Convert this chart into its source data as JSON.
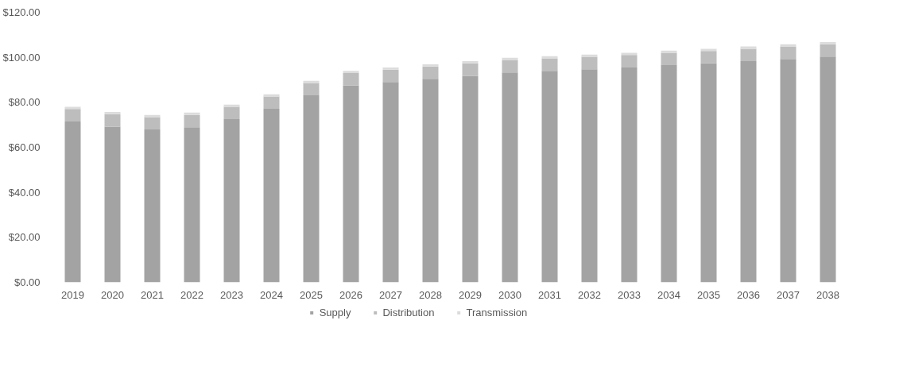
{
  "chart_data": {
    "type": "bar",
    "stacked": true,
    "categories": [
      "2019",
      "2020",
      "2021",
      "2022",
      "2023",
      "2024",
      "2025",
      "2026",
      "2027",
      "2028",
      "2029",
      "2030",
      "2031",
      "2032",
      "2033",
      "2034",
      "2035",
      "2036",
      "2037",
      "2038"
    ],
    "series": [
      {
        "name": "Supply",
        "color": "#a3a3a3",
        "values": [
          71.5,
          69.2,
          67.9,
          68.9,
          72.5,
          77.1,
          83.1,
          87.5,
          89,
          90.4,
          91.8,
          93.3,
          94,
          94.7,
          95.5,
          96.5,
          97.3,
          98.3,
          99.3,
          100.3
        ]
      },
      {
        "name": "Distribution",
        "color": "#bdbdbd",
        "values": [
          5.5,
          5.5,
          5.5,
          5.5,
          5.5,
          5.5,
          5.5,
          5.5,
          5.5,
          5.5,
          5.5,
          5.5,
          5.5,
          5.5,
          5.5,
          5.5,
          5.5,
          5.5,
          5.5,
          5.5
        ]
      },
      {
        "name": "Transmission",
        "color": "#dcdcdc",
        "values": [
          1,
          1,
          1,
          1,
          1,
          1,
          1,
          1,
          1,
          1,
          1,
          1,
          1,
          1,
          1,
          1,
          1,
          1,
          1,
          1
        ]
      }
    ],
    "ylim": [
      0,
      120
    ],
    "yticks": [
      {
        "value": 0,
        "label": "$0.00"
      },
      {
        "value": 20,
        "label": "$20.00"
      },
      {
        "value": 40,
        "label": "$40.00"
      },
      {
        "value": 60,
        "label": "$60.00"
      },
      {
        "value": 80,
        "label": "$80.00"
      },
      {
        "value": 100,
        "label": "$100.00"
      },
      {
        "value": 120,
        "label": "$120.00"
      }
    ],
    "grid": false,
    "legend": "bottom"
  }
}
